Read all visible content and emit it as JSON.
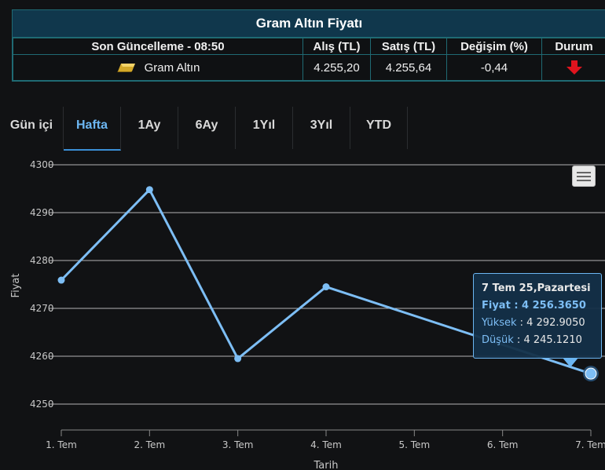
{
  "panel": {
    "title": "Gram Altın Fiyatı",
    "headers": {
      "updated": "Son Güncelleme - 08:50",
      "buy": "Alış (TL)",
      "sell": "Satış (TL)",
      "change": "Değişim (%)",
      "status": "Durum"
    },
    "row": {
      "icon": "gold-bar-icon",
      "name": "Gram Altın",
      "buy": "4.255,20",
      "sell": "4.255,64",
      "change": "-0,44",
      "status_icon": "red-down-arrow-icon"
    }
  },
  "tabs": [
    {
      "label": "Gün içi",
      "active": false
    },
    {
      "label": "Hafta",
      "active": true
    },
    {
      "label": "1Ay",
      "active": false
    },
    {
      "label": "6Ay",
      "active": false
    },
    {
      "label": "1Yıl",
      "active": false
    },
    {
      "label": "3Yıl",
      "active": false
    },
    {
      "label": "YTD",
      "active": false
    }
  ],
  "chart_data": {
    "type": "line",
    "title": "",
    "xlabel": "Tarih",
    "ylabel": "Fiyat",
    "categories": [
      "1. Tem",
      "2. Tem",
      "3. Tem",
      "4. Tem",
      "5. Tem",
      "6. Tem",
      "7. Tem"
    ],
    "series": [
      {
        "values": [
          4275.9,
          4294.8,
          4259.5,
          4274.5,
          null,
          null,
          4256.365
        ]
      }
    ],
    "yticks": [
      4250,
      4260,
      4270,
      4280,
      4290,
      4300
    ],
    "ylim": [
      4250,
      4300
    ],
    "grid": true,
    "legend": "none",
    "colors": {
      "line": "#7dbef5",
      "grid": "#d0d0d0",
      "axis": "#888888"
    }
  },
  "tooltip": {
    "date": "7 Tem 25,Pazartesi",
    "price_label": "Fiyat : 4 256.3650",
    "high_key": "Yüksek",
    "high_value": " : 4 292.9050",
    "low_key": "Düşük",
    "low_value": " : 4 245.1210"
  },
  "menu": {
    "icon": "hamburger-menu-icon"
  }
}
